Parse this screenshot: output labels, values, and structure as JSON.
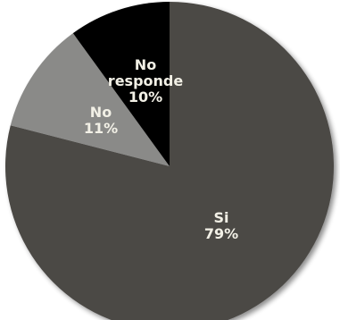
{
  "chart_data": {
    "type": "pie",
    "title": "",
    "slices": [
      {
        "label": "Si",
        "value": 79,
        "value_label": "79%",
        "color": "#4b4845"
      },
      {
        "label": "No",
        "value": 11,
        "value_label": "11%",
        "color": "#8a8a88"
      },
      {
        "label": "No responde",
        "label_lines": [
          "No",
          "responde"
        ],
        "value": 10,
        "value_label": "10%",
        "color": "#000000"
      }
    ],
    "start": "12 o'clock",
    "direction": "clockwise",
    "legend": "none"
  }
}
